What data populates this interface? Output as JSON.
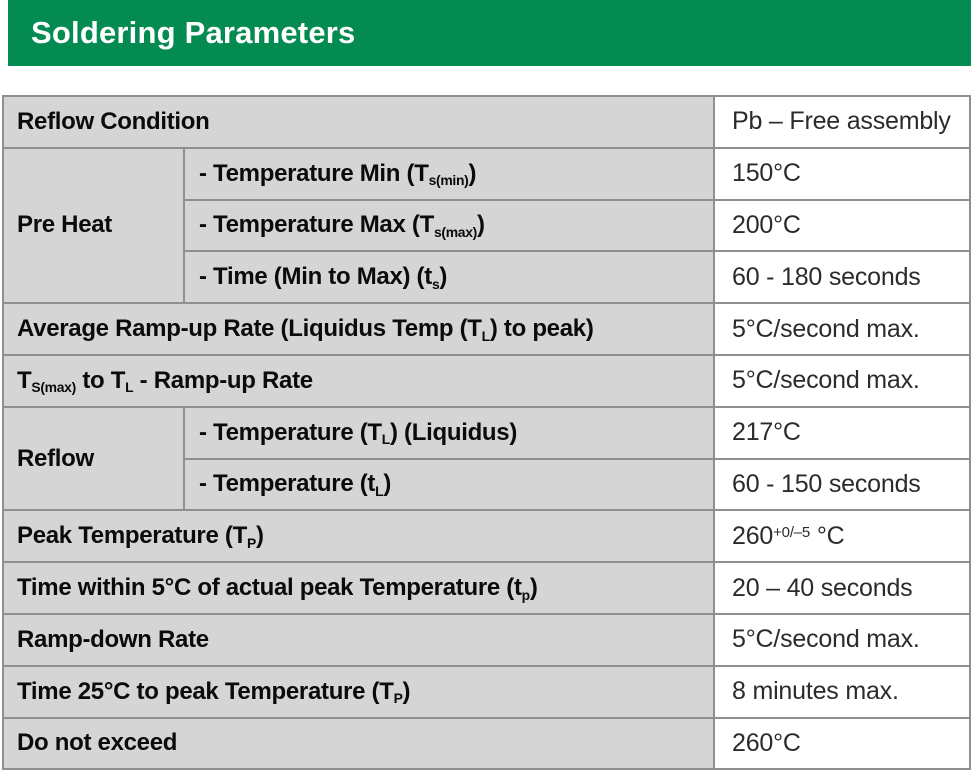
{
  "header": {
    "title": "Soldering Parameters"
  },
  "colors": {
    "header_bg": "#048B51",
    "header_text": "#FFFFFF",
    "label_cell_bg": "#D5D5D5",
    "value_cell_bg": "#FFFFFF",
    "border": "#8F8F8F",
    "label_text": "#0B0B0B",
    "value_text": "#2B2B2B"
  },
  "table": {
    "rows": [
      {
        "label": [
          [
            "Reflow Condition"
          ]
        ],
        "value": [
          [
            "Pb – Free assembly"
          ]
        ]
      },
      {
        "group": {
          "text": "Pre Heat",
          "rowspan": 3
        },
        "label": [
          [
            "- Temperature Min (T"
          ],
          [
            "s(min)",
            "sub"
          ],
          [
            ")"
          ]
        ],
        "value": [
          [
            "150°C"
          ]
        ]
      },
      {
        "in_group": true,
        "label": [
          [
            "- Temperature Max (T"
          ],
          [
            "s(max)",
            "sub"
          ],
          [
            ")"
          ]
        ],
        "value": [
          [
            "200°C"
          ]
        ]
      },
      {
        "in_group": true,
        "label": [
          [
            "- Time (Min to Max) (t"
          ],
          [
            "s",
            "sub"
          ],
          [
            ")"
          ]
        ],
        "value": [
          [
            "60 - 180 seconds"
          ]
        ]
      },
      {
        "label": [
          [
            "Average Ramp-up Rate (Liquidus Temp (T"
          ],
          [
            "L",
            "sub"
          ],
          [
            ") to peak)"
          ]
        ],
        "value": [
          [
            "5°C/second max."
          ]
        ]
      },
      {
        "label": [
          [
            "T"
          ],
          [
            "S(max)",
            "sub"
          ],
          [
            " to T"
          ],
          [
            "L",
            "sub"
          ],
          [
            " - Ramp-up Rate"
          ]
        ],
        "value": [
          [
            "5°C/second max."
          ]
        ]
      },
      {
        "group": {
          "text": "Reflow",
          "rowspan": 2
        },
        "label": [
          [
            "- Temperature (T"
          ],
          [
            "L",
            "sub"
          ],
          [
            ") (Liquidus)"
          ]
        ],
        "value": [
          [
            "217°C"
          ]
        ]
      },
      {
        "in_group": true,
        "label": [
          [
            "- Temperature (t"
          ],
          [
            "L",
            "sub"
          ],
          [
            ")"
          ]
        ],
        "value": [
          [
            "60 - 150 seconds"
          ]
        ]
      },
      {
        "label": [
          [
            "Peak Temperature (T"
          ],
          [
            "P",
            "sub"
          ],
          [
            ")"
          ]
        ],
        "value": [
          [
            "260"
          ],
          [
            "+0/–5",
            "sup"
          ],
          [
            " °C"
          ]
        ]
      },
      {
        "label": [
          [
            "Time within 5°C of actual peak Temperature (t"
          ],
          [
            "p",
            "sub"
          ],
          [
            ")"
          ]
        ],
        "value": [
          [
            "20 – 40 seconds"
          ]
        ]
      },
      {
        "label": [
          [
            "Ramp-down Rate"
          ]
        ],
        "value": [
          [
            "5°C/second max."
          ]
        ]
      },
      {
        "label": [
          [
            "Time 25°C to peak Temperature (T"
          ],
          [
            "P",
            "sub"
          ],
          [
            ")"
          ]
        ],
        "value": [
          [
            "8 minutes max."
          ]
        ]
      },
      {
        "label": [
          [
            "Do not exceed"
          ]
        ],
        "value": [
          [
            "260°C"
          ]
        ]
      }
    ]
  }
}
